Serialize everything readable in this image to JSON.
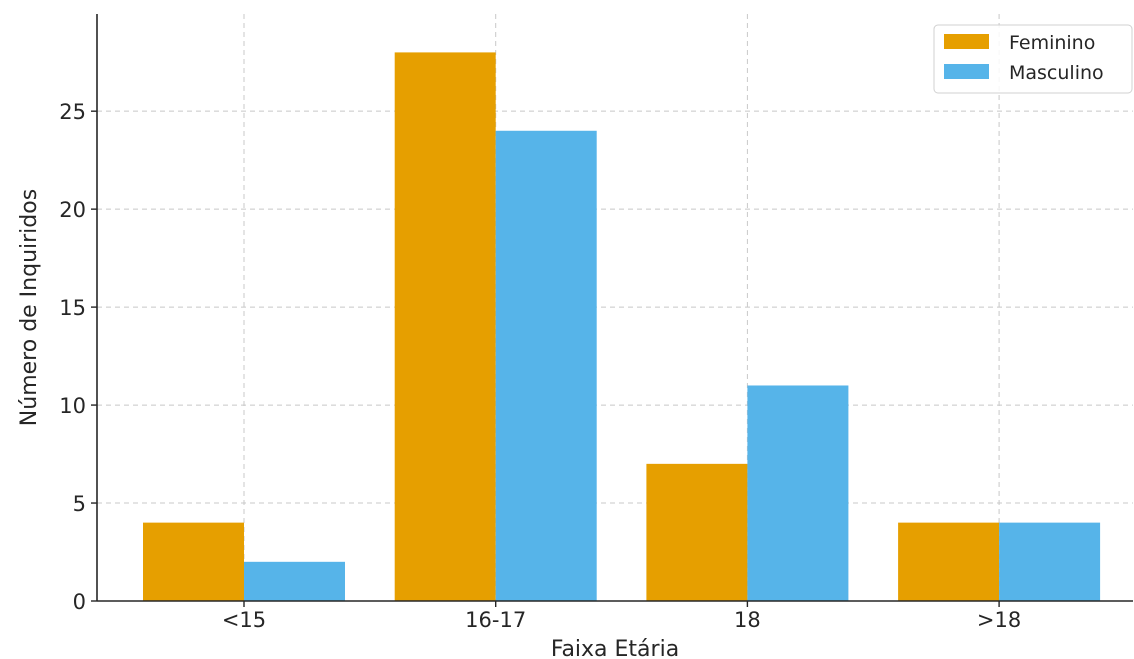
{
  "chart_data": {
    "type": "bar",
    "categories": [
      "<15",
      "16-17",
      "18",
      ">18"
    ],
    "series": [
      {
        "name": "Feminino",
        "values": [
          4,
          28,
          7,
          4
        ],
        "color": "#E69F00"
      },
      {
        "name": "Masculino",
        "values": [
          2,
          24,
          11,
          4
        ],
        "color": "#56B4E9"
      }
    ],
    "xlabel": "Faixa Etária",
    "ylabel": "Número de Inquiridos",
    "ylim": [
      0,
      29.96
    ],
    "yticks": [
      0,
      5,
      10,
      15,
      20,
      25
    ],
    "grid": true,
    "legend_position": "top-right"
  }
}
